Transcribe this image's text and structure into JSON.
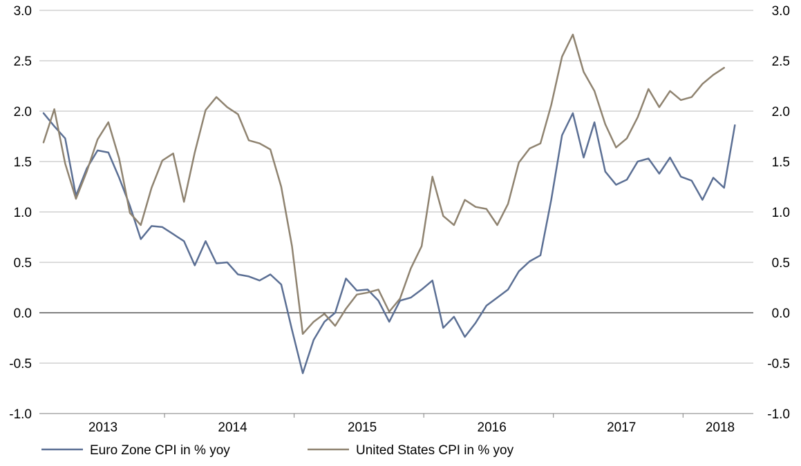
{
  "chart_data": {
    "type": "line",
    "title": "",
    "xlabel": "",
    "ylabel": "",
    "ylim": [
      -1.0,
      3.0
    ],
    "y_ticks": [
      -1.0,
      -0.5,
      0.0,
      0.5,
      1.0,
      1.5,
      2.0,
      2.5,
      3.0
    ],
    "y_tick_labels": [
      "-1.0",
      "-0.5",
      "0.0",
      "0.5",
      "1.0",
      "1.5",
      "2.0",
      "2.5",
      "3.0"
    ],
    "secondary_y_axis": {
      "ylim": [
        -1.0,
        3.0
      ],
      "tick_labels": [
        "-1.0",
        "-0.5",
        "0.0",
        "0.5",
        "1.0",
        "1.5",
        "2.0",
        "2.5",
        "3.0"
      ]
    },
    "x_year_labels": [
      "2013",
      "2014",
      "2015",
      "2016",
      "2017",
      "2018"
    ],
    "x_start": "2013-01",
    "grid": "horizontal",
    "legend_position": "bottom",
    "series": [
      {
        "name": "Euro Zone CPI in % yoy",
        "color": "#5b6f94",
        "values": [
          1.98,
          1.85,
          1.73,
          1.16,
          1.43,
          1.61,
          1.59,
          1.34,
          1.06,
          0.73,
          0.86,
          0.85,
          0.78,
          0.71,
          0.47,
          0.71,
          0.49,
          0.5,
          0.38,
          0.36,
          0.32,
          0.38,
          0.28,
          -0.17,
          -0.6,
          -0.27,
          -0.09,
          0.0,
          0.34,
          0.22,
          0.23,
          0.12,
          -0.09,
          0.12,
          0.15,
          0.23,
          0.32,
          -0.15,
          -0.04,
          -0.24,
          -0.1,
          0.07,
          0.15,
          0.23,
          0.41,
          0.51,
          0.57,
          1.12,
          1.76,
          1.98,
          1.54,
          1.89,
          1.4,
          1.27,
          1.32,
          1.5,
          1.53,
          1.38,
          1.54,
          1.35,
          1.31,
          1.12,
          1.34,
          1.24,
          1.86
        ]
      },
      {
        "name": "United States CPI in % yoy",
        "color": "#8f8370",
        "values": [
          1.69,
          2.02,
          1.48,
          1.13,
          1.4,
          1.72,
          1.89,
          1.53,
          0.99,
          0.87,
          1.24,
          1.51,
          1.58,
          1.1,
          1.59,
          2.01,
          2.14,
          2.04,
          1.97,
          1.71,
          1.68,
          1.62,
          1.25,
          0.66,
          -0.21,
          -0.09,
          -0.01,
          -0.13,
          0.04,
          0.18,
          0.2,
          0.23,
          0.01,
          0.14,
          0.44,
          0.66,
          1.35,
          0.96,
          0.87,
          1.12,
          1.05,
          1.03,
          0.87,
          1.08,
          1.49,
          1.63,
          1.68,
          2.06,
          2.54,
          2.76,
          2.39,
          2.2,
          1.87,
          1.64,
          1.73,
          1.94,
          2.22,
          2.04,
          2.2,
          2.11,
          2.14,
          2.27,
          2.36,
          2.43
        ]
      }
    ]
  },
  "legend": {
    "items": [
      {
        "label": "Euro Zone CPI in % yoy",
        "color": "#5b6f94"
      },
      {
        "label": "United States CPI in % yoy",
        "color": "#8f8370"
      }
    ]
  }
}
